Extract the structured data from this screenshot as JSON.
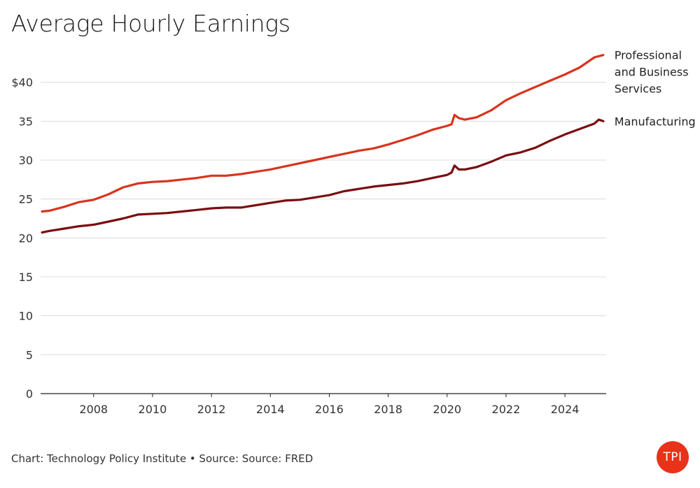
{
  "chart_data": {
    "type": "line",
    "title": "Average Hourly Earnings",
    "xlabel": "",
    "ylabel": "",
    "xlim": [
      2006.2,
      2025.4
    ],
    "ylim": [
      0,
      45
    ],
    "y_ticks": [
      {
        "value": 0,
        "label": "0"
      },
      {
        "value": 5,
        "label": "5"
      },
      {
        "value": 10,
        "label": "10"
      },
      {
        "value": 15,
        "label": "15"
      },
      {
        "value": 20,
        "label": "20"
      },
      {
        "value": 25,
        "label": "25"
      },
      {
        "value": 30,
        "label": "30"
      },
      {
        "value": 35,
        "label": "35"
      },
      {
        "value": 40,
        "label": "$40"
      }
    ],
    "x_ticks": [
      {
        "value": 2008,
        "label": "2008"
      },
      {
        "value": 2010,
        "label": "2010"
      },
      {
        "value": 2012,
        "label": "2012"
      },
      {
        "value": 2014,
        "label": "2014"
      },
      {
        "value": 2016,
        "label": "2016"
      },
      {
        "value": 2018,
        "label": "2018"
      },
      {
        "value": 2020,
        "label": "2020"
      },
      {
        "value": 2022,
        "label": "2022"
      },
      {
        "value": 2024,
        "label": "2024"
      }
    ],
    "grid": "horizontal",
    "series": [
      {
        "name": "Professional and Business Services",
        "label_lines": [
          "Professional",
          "and Business",
          "Services"
        ],
        "color": "#d8341e",
        "points": [
          [
            2006.25,
            23.4
          ],
          [
            2006.5,
            23.5
          ],
          [
            2007.0,
            24.0
          ],
          [
            2007.5,
            24.6
          ],
          [
            2008.0,
            24.9
          ],
          [
            2008.5,
            25.6
          ],
          [
            2009.0,
            26.5
          ],
          [
            2009.5,
            27.0
          ],
          [
            2010.0,
            27.2
          ],
          [
            2010.5,
            27.3
          ],
          [
            2011.0,
            27.5
          ],
          [
            2011.5,
            27.7
          ],
          [
            2012.0,
            28.0
          ],
          [
            2012.5,
            28.0
          ],
          [
            2013.0,
            28.2
          ],
          [
            2013.5,
            28.5
          ],
          [
            2014.0,
            28.8
          ],
          [
            2014.5,
            29.2
          ],
          [
            2015.0,
            29.6
          ],
          [
            2015.5,
            30.0
          ],
          [
            2016.0,
            30.4
          ],
          [
            2016.5,
            30.8
          ],
          [
            2017.0,
            31.2
          ],
          [
            2017.5,
            31.5
          ],
          [
            2018.0,
            32.0
          ],
          [
            2018.5,
            32.6
          ],
          [
            2019.0,
            33.2
          ],
          [
            2019.5,
            33.9
          ],
          [
            2020.0,
            34.4
          ],
          [
            2020.15,
            34.6
          ],
          [
            2020.25,
            35.8
          ],
          [
            2020.4,
            35.4
          ],
          [
            2020.6,
            35.2
          ],
          [
            2021.0,
            35.5
          ],
          [
            2021.5,
            36.4
          ],
          [
            2022.0,
            37.7
          ],
          [
            2022.5,
            38.6
          ],
          [
            2023.0,
            39.4
          ],
          [
            2023.5,
            40.2
          ],
          [
            2024.0,
            41.0
          ],
          [
            2024.5,
            41.9
          ],
          [
            2025.0,
            43.2
          ],
          [
            2025.3,
            43.5
          ]
        ]
      },
      {
        "name": "Manufacturing",
        "label_lines": [
          "Manufacturing"
        ],
        "color": "#7a0c10",
        "points": [
          [
            2006.25,
            20.7
          ],
          [
            2006.5,
            20.9
          ],
          [
            2007.0,
            21.2
          ],
          [
            2007.5,
            21.5
          ],
          [
            2008.0,
            21.7
          ],
          [
            2008.5,
            22.1
          ],
          [
            2009.0,
            22.5
          ],
          [
            2009.5,
            23.0
          ],
          [
            2010.0,
            23.1
          ],
          [
            2010.5,
            23.2
          ],
          [
            2011.0,
            23.4
          ],
          [
            2011.5,
            23.6
          ],
          [
            2012.0,
            23.8
          ],
          [
            2012.5,
            23.9
          ],
          [
            2013.0,
            23.9
          ],
          [
            2013.5,
            24.2
          ],
          [
            2014.0,
            24.5
          ],
          [
            2014.5,
            24.8
          ],
          [
            2015.0,
            24.9
          ],
          [
            2015.5,
            25.2
          ],
          [
            2016.0,
            25.5
          ],
          [
            2016.5,
            26.0
          ],
          [
            2017.0,
            26.3
          ],
          [
            2017.5,
            26.6
          ],
          [
            2018.0,
            26.8
          ],
          [
            2018.5,
            27.0
          ],
          [
            2019.0,
            27.3
          ],
          [
            2019.5,
            27.7
          ],
          [
            2020.0,
            28.1
          ],
          [
            2020.15,
            28.4
          ],
          [
            2020.25,
            29.3
          ],
          [
            2020.4,
            28.8
          ],
          [
            2020.6,
            28.8
          ],
          [
            2021.0,
            29.1
          ],
          [
            2021.5,
            29.8
          ],
          [
            2022.0,
            30.6
          ],
          [
            2022.5,
            31.0
          ],
          [
            2023.0,
            31.6
          ],
          [
            2023.5,
            32.5
          ],
          [
            2024.0,
            33.3
          ],
          [
            2024.5,
            34.0
          ],
          [
            2025.0,
            34.7
          ],
          [
            2025.15,
            35.2
          ],
          [
            2025.3,
            35.0
          ]
        ]
      }
    ]
  },
  "footer": {
    "source_text": "Chart: Technology Policy Institute • Source: Source: FRED"
  },
  "logo": {
    "text": "TPI",
    "color": "#e8321a"
  }
}
